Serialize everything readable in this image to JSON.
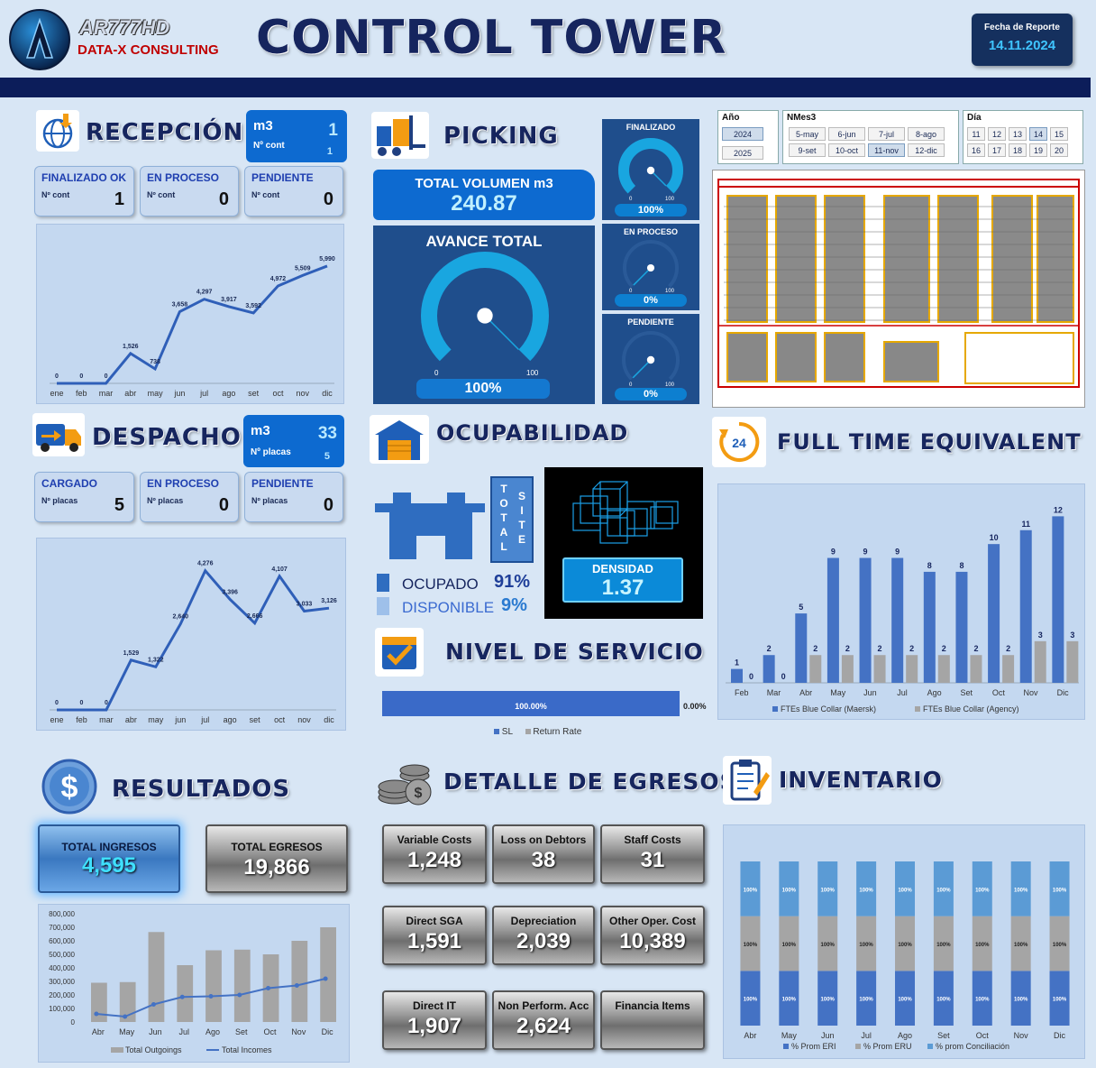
{
  "header": {
    "logo_name": "AR777HD",
    "logo_sub": "DATA-X CONSULTING",
    "title": "CONTROL TOWER",
    "report_label": "Fecha de Reporte",
    "report_date": "14.11.2024"
  },
  "recepcion": {
    "title": "RECEPCIÓN",
    "kpi_unit": "m3",
    "kpi_value": "1",
    "kpi_sub": "Nº cont",
    "kpi_sub_value": "1",
    "cards": [
      {
        "label": "FINALIZADO OK",
        "sub": "Nº cont",
        "value": "1"
      },
      {
        "label": "EN PROCESO",
        "sub": "Nº cont",
        "value": "0"
      },
      {
        "label": "PENDIENTE",
        "sub": "Nº cont",
        "value": "0"
      }
    ]
  },
  "recepcion_chart": {
    "type": "line",
    "categories": [
      "ene",
      "feb",
      "mar",
      "abr",
      "may",
      "jun",
      "jul",
      "ago",
      "set",
      "oct",
      "nov",
      "dic"
    ],
    "values": [
      0,
      0,
      0,
      1526,
      738,
      3658,
      4297,
      3917,
      3592,
      4972,
      5509,
      5990
    ],
    "labels": [
      "0",
      "0",
      "0",
      "1,526",
      "738",
      "3,658",
      "4,297",
      "3,917",
      "3,592",
      "4,972",
      "5,509",
      "5,990"
    ],
    "ylim": [
      0,
      7000
    ]
  },
  "despacho": {
    "title": "DESPACHO",
    "kpi_unit": "m3",
    "kpi_value": "33",
    "kpi_sub": "Nº placas",
    "kpi_sub_value": "5",
    "cards": [
      {
        "label": "CARGADO",
        "sub": "Nº placas",
        "value": "5"
      },
      {
        "label": "EN PROCESO",
        "sub": "Nº placas",
        "value": "0"
      },
      {
        "label": "PENDIENTE",
        "sub": "Nº placas",
        "value": "0"
      }
    ]
  },
  "despacho_chart": {
    "type": "line",
    "categories": [
      "ene",
      "feb",
      "mar",
      "abr",
      "may",
      "jun",
      "jul",
      "ago",
      "set",
      "oct",
      "nov",
      "dic"
    ],
    "values": [
      0,
      0,
      0,
      1529,
      1322,
      2640,
      4276,
      3396,
      2666,
      4107,
      3033,
      3126
    ],
    "labels": [
      "0",
      "0",
      "0",
      "1,529",
      "1,322",
      "2,640",
      "4,276",
      "3,396",
      "2,666",
      "4,107",
      "3,033",
      "3,126"
    ],
    "ylim": [
      0,
      4600
    ]
  },
  "picking": {
    "title": "PICKING",
    "total_label": "TOTAL VOLUMEN m3",
    "total_value": "240.87",
    "avance_label": "AVANCE TOTAL",
    "avance_pct": "100%",
    "avance_frac": 1.0,
    "scale_min": "0",
    "scale_max": "100",
    "gauges": [
      {
        "label": "FINALIZADO",
        "pct": "100%",
        "frac": 1.0
      },
      {
        "label": "EN PROCESO",
        "pct": "0%",
        "frac": 0
      },
      {
        "label": "PENDIENTE",
        "pct": "0%",
        "frac": 0
      }
    ]
  },
  "slicers": {
    "year_title": "Año",
    "years": [
      "2024",
      "2025"
    ],
    "year_selected": "2024",
    "month_title": "NMes3",
    "months": [
      "5-may",
      "6-jun",
      "7-jul",
      "8-ago",
      "9-set",
      "10-oct",
      "11-nov",
      "12-dic"
    ],
    "month_selected": "11-nov",
    "day_title": "Día",
    "days": [
      "11",
      "12",
      "13",
      "14",
      "15",
      "16",
      "17",
      "18",
      "19",
      "20"
    ],
    "day_selected": "14"
  },
  "ocupabilidad": {
    "title": "OCUPABILIDAD",
    "total_label": "TOTAL",
    "site_label": "SITE",
    "occupied_label": "OCUPADO",
    "occupied_pct": "91%",
    "available_label": "DISPONIBLE",
    "available_pct": "9%",
    "density_label": "DENSIDAD",
    "density_value": "1.37"
  },
  "nivel_servicio": {
    "title": "NIVEL DE SERVICIO",
    "sl_pct": "100.00%",
    "rr_pct": "0.00%",
    "sl_frac": 1.0,
    "legend_sl": "SL",
    "legend_rr": "Return Rate"
  },
  "fte": {
    "title": "FULL TIME EQUIVALENT",
    "icon_text": "24"
  },
  "fte_chart": {
    "type": "bar",
    "categories": [
      "Feb",
      "Mar",
      "Abr",
      "May",
      "Jun",
      "Jul",
      "Ago",
      "Set",
      "Oct",
      "Nov",
      "Dic"
    ],
    "series": [
      {
        "name": "FTEs Blue  Collar (Maersk)",
        "values": [
          1,
          2,
          5,
          9,
          9,
          9,
          8,
          8,
          10,
          11,
          12
        ],
        "color": "#4472c4"
      },
      {
        "name": "FTEs Blue  Collar (Agency)",
        "values": [
          0,
          0,
          2,
          2,
          2,
          2,
          2,
          2,
          2,
          3,
          3
        ],
        "color": "#a5a5a5"
      }
    ],
    "ylim": [
      0,
      13
    ]
  },
  "resultados": {
    "title": "RESULTADOS",
    "ingresos_label": "TOTAL INGRESOS",
    "ingresos_value": "4,595",
    "egresos_label": "TOTAL EGRESOS",
    "egresos_value": "19,866"
  },
  "resultados_chart": {
    "type": "bar",
    "categories": [
      "Abr",
      "May",
      "Jun",
      "Jul",
      "Ago",
      "Set",
      "Oct",
      "Nov",
      "Dic"
    ],
    "series": [
      {
        "name": "Total Outgoings",
        "values": [
          290000,
          295000,
          665000,
          420000,
          530000,
          535000,
          500000,
          600000,
          700000
        ],
        "color": "#a5a5a5"
      },
      {
        "name": "Total Incomes",
        "values": [
          60000,
          40000,
          130000,
          185000,
          190000,
          200000,
          250000,
          270000,
          320000
        ],
        "color": "#4472c4"
      }
    ],
    "ylim": [
      0,
      800000
    ],
    "yticks": [
      "800,000",
      "700,000",
      "600,000",
      "500,000",
      "400,000",
      "300,000",
      "200,000",
      "100,000",
      "0"
    ]
  },
  "egresos": {
    "title": "DETALLE DE EGRESOS",
    "items": [
      {
        "label": "Variable Costs",
        "value": "1,248"
      },
      {
        "label": "Loss on Debtors",
        "value": "38"
      },
      {
        "label": "Staff Costs",
        "value": "31"
      },
      {
        "label": "Direct SGA",
        "value": "1,591"
      },
      {
        "label": "Depreciation",
        "value": "2,039"
      },
      {
        "label": "Other Oper. Cost",
        "value": "10,389"
      },
      {
        "label": "Direct IT",
        "value": "1,907"
      },
      {
        "label": "Non Perform. Acc",
        "value": "2,624"
      },
      {
        "label": "Financia Items",
        "value": ""
      }
    ]
  },
  "inventario": {
    "title": "INVENTARIO"
  },
  "inventario_chart": {
    "type": "bar",
    "categories": [
      "Abr",
      "May",
      "Jun",
      "Jul",
      "Ago",
      "Set",
      "Oct",
      "Nov",
      "Dic"
    ],
    "series": [
      {
        "name": "% Prom ERI",
        "values": [
          100,
          100,
          100,
          100,
          100,
          100,
          100,
          100,
          100
        ],
        "color": "#4472c4",
        "label": "100%"
      },
      {
        "name": "% Prom ERU",
        "values": [
          100,
          100,
          100,
          100,
          100,
          100,
          100,
          100,
          100
        ],
        "color": "#a5a5a5",
        "label": "100%"
      },
      {
        "name": "% prom Conciliación",
        "values": [
          100,
          100,
          100,
          100,
          100,
          100,
          100,
          100,
          100
        ],
        "color": "#5b9bd5",
        "label": "100%"
      }
    ]
  }
}
